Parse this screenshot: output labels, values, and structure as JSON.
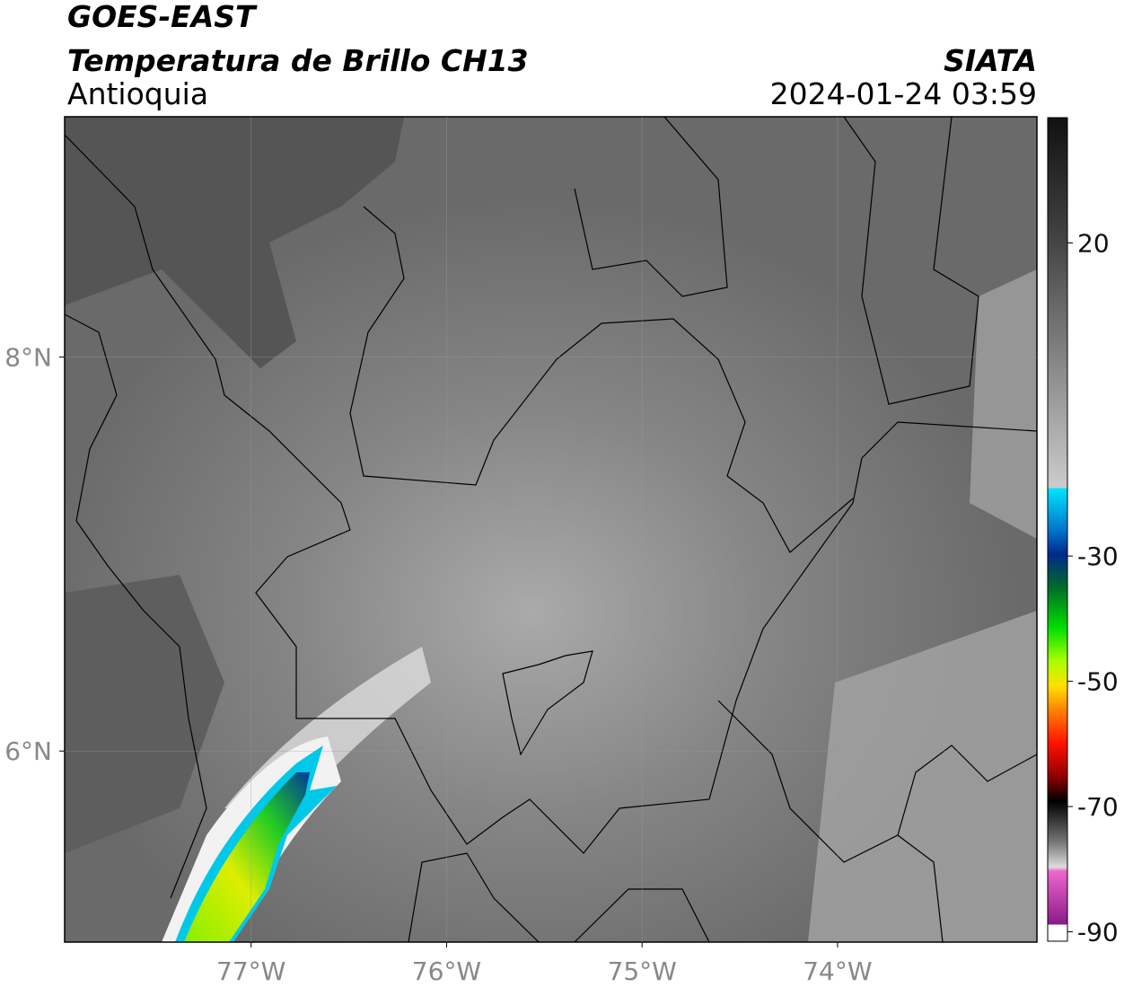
{
  "header": {
    "satellite": "GOES-EAST",
    "product": "Temperatura de Brillo CH13",
    "region": "Antioquia",
    "source": "SIATA",
    "datetime": "2024-01-24 03:59"
  },
  "map": {
    "xlim": [
      -77.954,
      -72.98
    ],
    "ylim": [
      5.03,
      9.22
    ],
    "xticks": [
      {
        "value": -77,
        "label": "77°W"
      },
      {
        "value": -76,
        "label": "76°W"
      },
      {
        "value": -75,
        "label": "75°W"
      },
      {
        "value": -74,
        "label": "74°W"
      }
    ],
    "yticks": [
      {
        "value": 8,
        "label": "8°N"
      },
      {
        "value": 6,
        "label": "6°N"
      }
    ]
  },
  "colorbar": {
    "range": [
      -91.5,
      40
    ],
    "ticks": [
      20,
      -30,
      -50,
      -70,
      -90
    ]
  }
}
